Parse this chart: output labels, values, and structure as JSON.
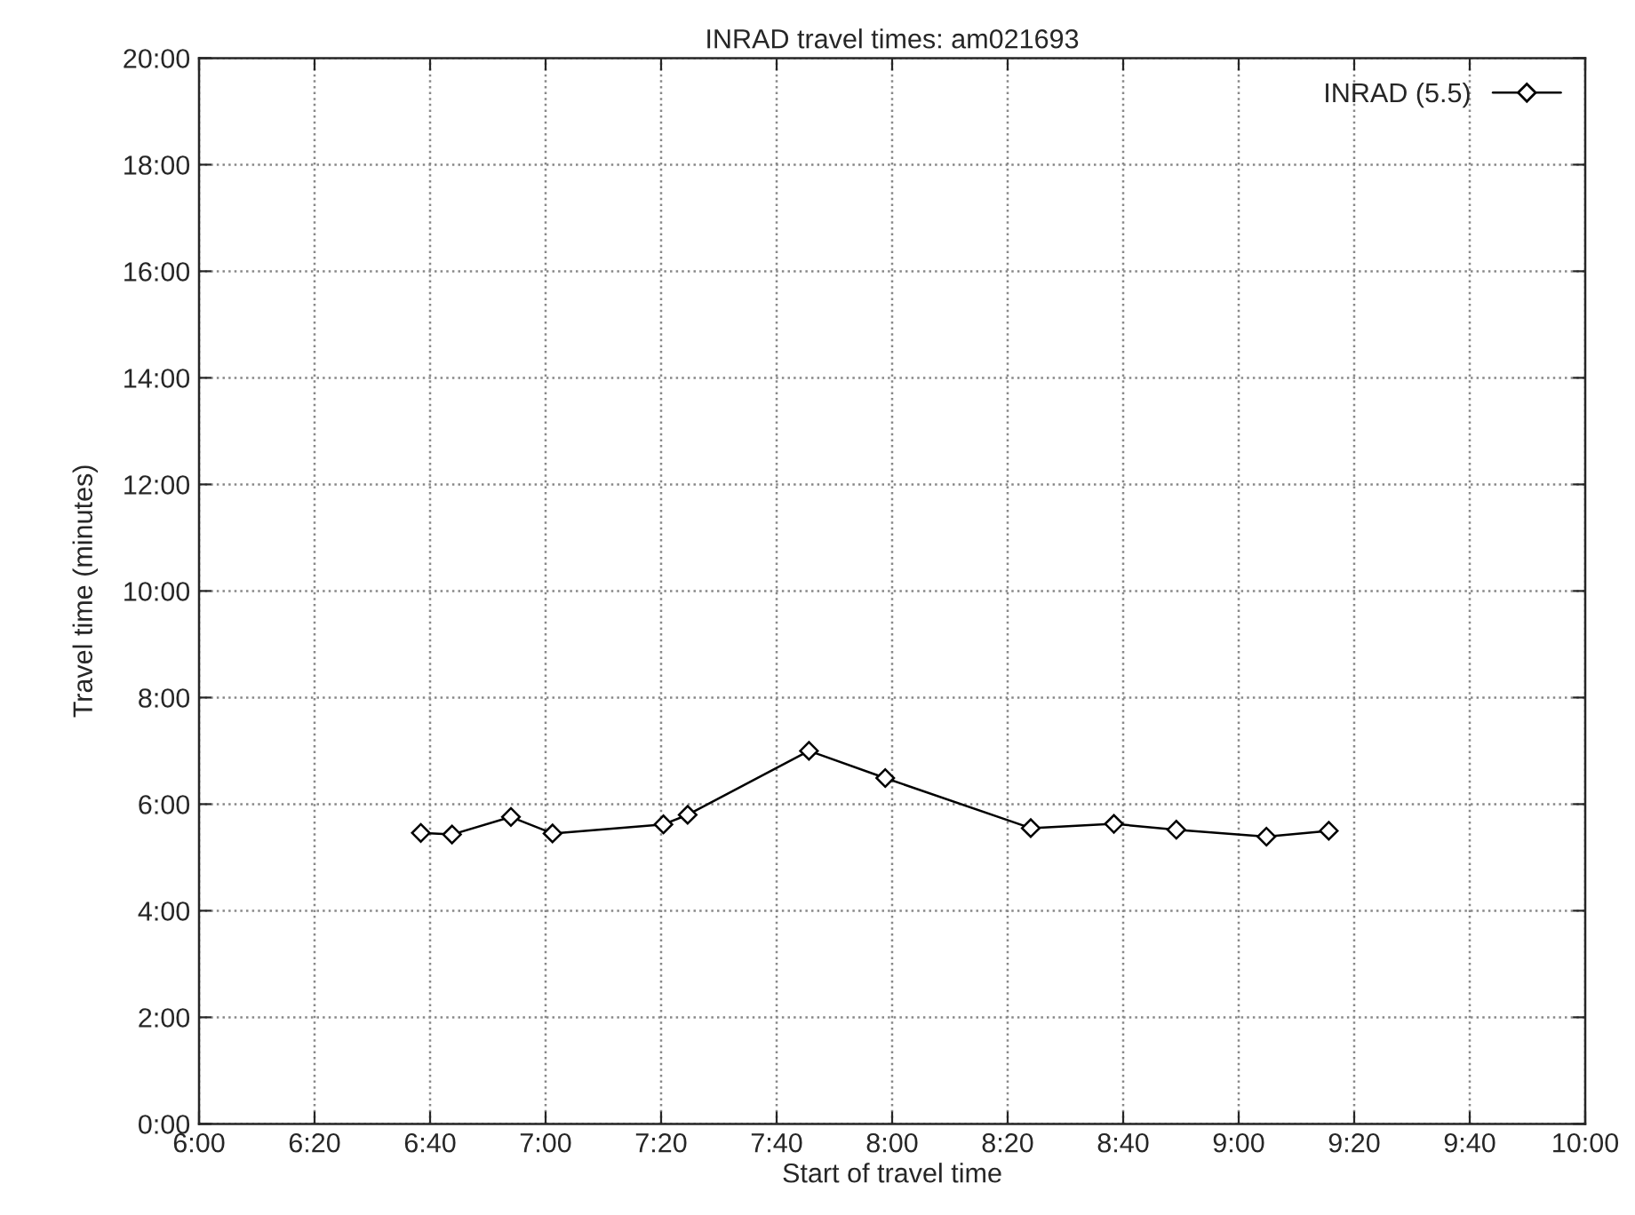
{
  "chart_data": {
    "type": "line",
    "title": "INRAD travel times: am021693",
    "xlabel": "Start of travel time",
    "ylabel": "Travel time (minutes)",
    "x": [
      6.64,
      6.73,
      6.9,
      7.02,
      7.34,
      7.41,
      7.76,
      7.98,
      8.4,
      8.64,
      8.82,
      9.08,
      9.26
    ],
    "series": [
      {
        "name": "INRAD (5.5)",
        "color": "#000000",
        "values": [
          5.46,
          5.43,
          5.76,
          5.45,
          5.62,
          5.8,
          7.0,
          6.49,
          5.55,
          5.63,
          5.52,
          5.39,
          5.5
        ]
      }
    ],
    "xlim": [
      6,
      10
    ],
    "xticks": [
      {
        "value": 6,
        "label": "6:00"
      },
      {
        "value": 6.3333,
        "label": "6:20"
      },
      {
        "value": 6.6667,
        "label": "6:40"
      },
      {
        "value": 7,
        "label": "7:00"
      },
      {
        "value": 7.3333,
        "label": "7:20"
      },
      {
        "value": 7.6667,
        "label": "7:40"
      },
      {
        "value": 8,
        "label": "8:00"
      },
      {
        "value": 8.3333,
        "label": "8:20"
      },
      {
        "value": 8.6667,
        "label": "8:40"
      },
      {
        "value": 9,
        "label": "9:00"
      },
      {
        "value": 9.3333,
        "label": "9:20"
      },
      {
        "value": 9.6667,
        "label": "9:40"
      },
      {
        "value": 10,
        "label": "10:00"
      }
    ],
    "ylim": [
      0,
      20
    ],
    "yticks": [
      {
        "value": 0,
        "label": "0:00"
      },
      {
        "value": 2,
        "label": "2:00"
      },
      {
        "value": 4,
        "label": "4:00"
      },
      {
        "value": 6,
        "label": "6:00"
      },
      {
        "value": 8,
        "label": "8:00"
      },
      {
        "value": 10,
        "label": "10:00"
      },
      {
        "value": 12,
        "label": "12:00"
      },
      {
        "value": 14,
        "label": "14:00"
      },
      {
        "value": 16,
        "label": "16:00"
      },
      {
        "value": 18,
        "label": "18:00"
      },
      {
        "value": 20,
        "label": "20:00"
      }
    ],
    "grid": true,
    "legend": "top right",
    "marker": "diamond",
    "line_style": "solid"
  }
}
